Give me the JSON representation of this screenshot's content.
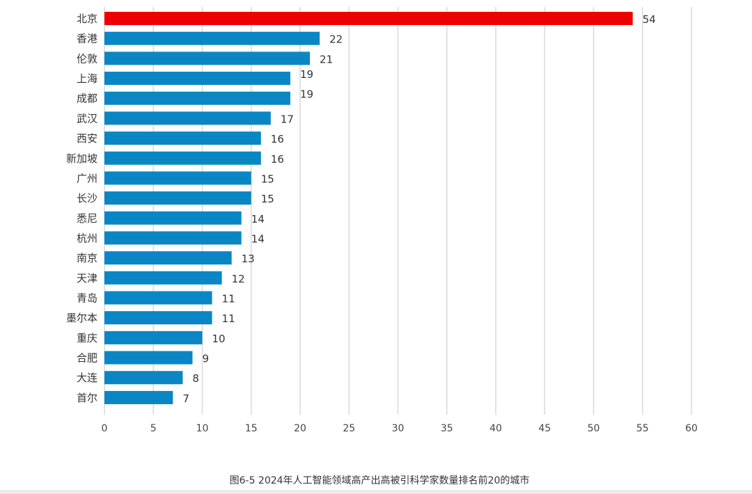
{
  "chart_data": {
    "type": "bar",
    "orientation": "horizontal",
    "title": "图6-5 2024年人工智能领域高产出高被引科学家数量排名前20的城市",
    "categories": [
      "北京",
      "香港",
      "伦敦",
      "上海",
      "成都",
      "武汉",
      "西安",
      "新加坡",
      "广州",
      "长沙",
      "悉尼",
      "杭州",
      "南京",
      "天津",
      "青岛",
      "墨尔本",
      "重庆",
      "合肥",
      "大连",
      "首尔"
    ],
    "values": [
      54,
      22,
      21,
      19,
      19,
      17,
      16,
      16,
      15,
      15,
      14,
      14,
      13,
      12,
      11,
      11,
      10,
      9,
      8,
      7
    ],
    "xlim": [
      0,
      60
    ],
    "xticks": [
      0,
      5,
      10,
      15,
      20,
      25,
      30,
      35,
      40,
      45,
      50,
      55,
      60
    ],
    "xlabel": "",
    "ylabel": "",
    "grid": "vertical",
    "legend": "none",
    "colors": {
      "highlight": "#ee0000",
      "default": "#0a86c4",
      "grid": "#d9d9d9"
    },
    "highlight_category": "北京"
  }
}
